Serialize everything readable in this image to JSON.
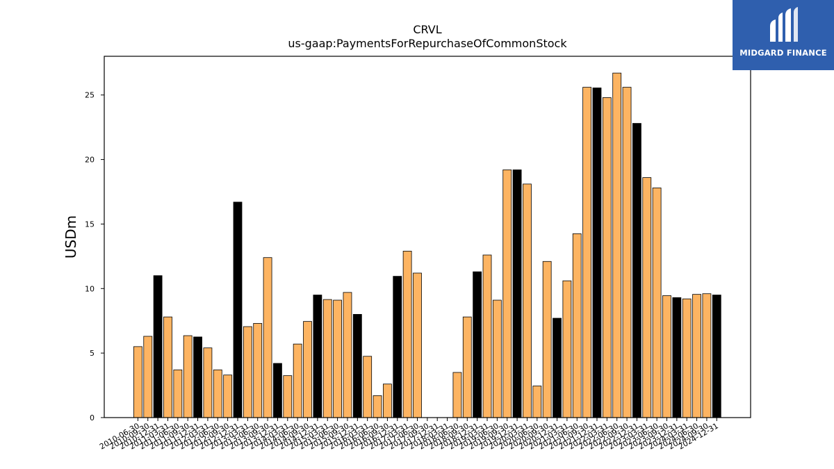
{
  "colors": {
    "regular": "#fdb462",
    "highlight": "#000000",
    "logo_bg": "#2f5fae"
  },
  "logo": {
    "text": "MIDGARD FINANCE",
    "icon": "midgard-logo-icon"
  },
  "chart_data": {
    "type": "bar",
    "title": "CRVL",
    "subtitle": "us-gaap:PaymentsForRepurchaseOfCommonStock",
    "xlabel": "",
    "ylabel": "USDm",
    "ylim": [
      0,
      28
    ],
    "yticks": [
      0,
      5,
      10,
      15,
      20,
      25
    ],
    "grid": false,
    "categories": [
      "2010-06-30",
      "2010-09-30",
      "2010-12-31",
      "2011-03-31",
      "2011-06-30",
      "2011-09-30",
      "2011-12-31",
      "2012-03-31",
      "2012-06-30",
      "2012-09-30",
      "2012-12-31",
      "2013-03-31",
      "2013-06-30",
      "2013-09-30",
      "2013-12-31",
      "2014-03-31",
      "2014-06-30",
      "2014-09-30",
      "2014-12-31",
      "2015-03-31",
      "2015-06-30",
      "2015-09-30",
      "2015-12-31",
      "2016-03-31",
      "2016-06-30",
      "2016-09-30",
      "2016-12-31",
      "2017-03-31",
      "2017-06-30",
      "2017-09-30",
      "2017-12-31",
      "2018-03-31",
      "2018-06-30",
      "2018-09-30",
      "2018-12-31",
      "2019-03-31",
      "2019-06-30",
      "2019-09-30",
      "2019-12-31",
      "2020-03-31",
      "2020-06-30",
      "2020-09-30",
      "2020-12-31",
      "2021-03-31",
      "2021-06-30",
      "2021-09-30",
      "2021-12-31",
      "2022-03-31",
      "2022-06-30",
      "2022-09-30",
      "2022-12-31",
      "2023-03-31",
      "2023-06-30",
      "2023-09-30",
      "2023-12-31",
      "2024-03-31",
      "2024-06-30",
      "2024-09-30",
      "2024-12-31"
    ],
    "values": [
      5.5,
      6.3,
      11.0,
      7.8,
      3.7,
      6.35,
      6.25,
      5.4,
      3.7,
      3.3,
      16.7,
      7.05,
      7.3,
      12.4,
      4.2,
      3.25,
      5.7,
      7.45,
      9.5,
      9.15,
      9.1,
      9.7,
      8.0,
      4.75,
      1.7,
      2.6,
      10.95,
      12.9,
      11.2,
      0,
      0,
      0,
      3.5,
      7.8,
      11.3,
      12.6,
      9.1,
      19.2,
      19.2,
      18.1,
      2.45,
      12.1,
      7.7,
      10.6,
      14.25,
      25.6,
      25.55,
      24.8,
      26.7,
      25.6,
      22.8,
      18.6,
      17.8,
      9.45,
      9.3,
      9.2,
      9.55,
      9.6,
      9.5
    ],
    "highlight": [
      false,
      false,
      true,
      false,
      false,
      false,
      true,
      false,
      false,
      false,
      true,
      false,
      false,
      false,
      true,
      false,
      false,
      false,
      true,
      false,
      false,
      false,
      true,
      false,
      false,
      false,
      true,
      false,
      false,
      false,
      true,
      false,
      false,
      false,
      true,
      false,
      false,
      false,
      true,
      false,
      false,
      false,
      true,
      false,
      false,
      false,
      true,
      false,
      false,
      false,
      true,
      false,
      false,
      false,
      true,
      false,
      false,
      false,
      true
    ]
  }
}
